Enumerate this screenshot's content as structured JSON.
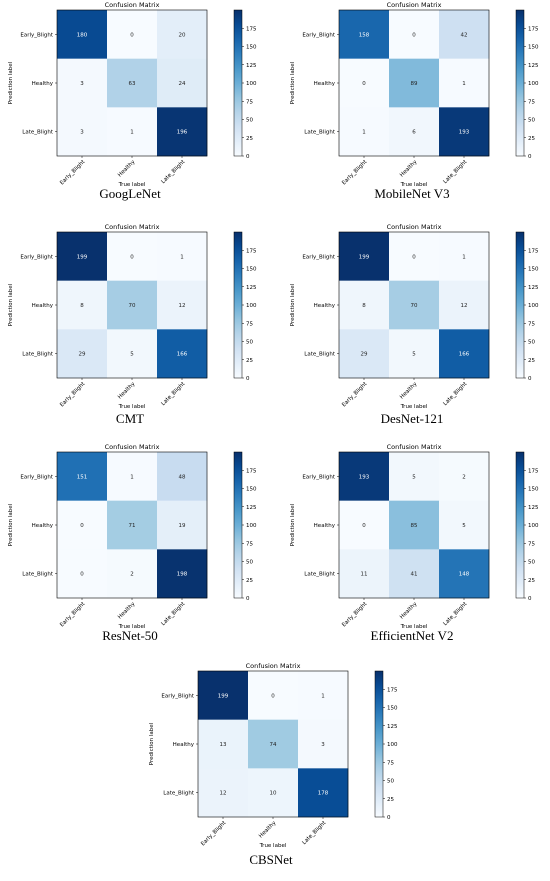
{
  "chart_data": [
    {
      "type": "heatmap",
      "title": "Confusion Matrix",
      "caption": "GoogLeNet",
      "xlabel": "True label",
      "ylabel": "Prediction label",
      "x_categories": [
        "Early_Blight",
        "Healthy",
        "Late_Blight"
      ],
      "y_categories": [
        "Early_Blight",
        "Healthy",
        "Late_Blight"
      ],
      "values": [
        [
          180,
          0,
          20
        ],
        [
          3,
          63,
          24
        ],
        [
          3,
          1,
          196
        ]
      ],
      "colorbar_ticks": [
        0,
        25,
        50,
        75,
        100,
        125,
        150,
        175
      ],
      "colormap": "Blues"
    },
    {
      "type": "heatmap",
      "title": "Confusion Matrix",
      "caption": "MobileNet V3",
      "xlabel": "True label",
      "ylabel": "Prediction label",
      "x_categories": [
        "Early_Blight",
        "Healthy",
        "Late_Blight"
      ],
      "y_categories": [
        "Early_Blight",
        "Healthy",
        "Late_Blight"
      ],
      "values": [
        [
          158,
          0,
          42
        ],
        [
          0,
          89,
          1
        ],
        [
          1,
          6,
          193
        ]
      ],
      "colorbar_ticks": [
        0,
        25,
        50,
        75,
        100,
        125,
        150,
        175
      ],
      "colormap": "Blues"
    },
    {
      "type": "heatmap",
      "title": "Confusion Matrix",
      "caption": "CMT",
      "xlabel": "True label",
      "ylabel": "Prediction label",
      "x_categories": [
        "Early_Blight",
        "Healthy",
        "Late_Blight"
      ],
      "y_categories": [
        "Early_Blight",
        "Healthy",
        "Late_Blight"
      ],
      "values": [
        [
          199,
          0,
          1
        ],
        [
          8,
          70,
          12
        ],
        [
          29,
          5,
          166
        ]
      ],
      "colorbar_ticks": [
        0,
        25,
        50,
        75,
        100,
        125,
        150,
        175
      ],
      "colormap": "Blues"
    },
    {
      "type": "heatmap",
      "title": "Confusion Matrix",
      "caption": "DesNet-121",
      "xlabel": "True label",
      "ylabel": "Prediction label",
      "x_categories": [
        "Early_Blight",
        "Healthy",
        "Late_Blight"
      ],
      "y_categories": [
        "Early_Blight",
        "Healthy",
        "Late_Blight"
      ],
      "values": [
        [
          199,
          0,
          1
        ],
        [
          8,
          70,
          12
        ],
        [
          29,
          5,
          166
        ]
      ],
      "colorbar_ticks": [
        0,
        25,
        50,
        75,
        100,
        125,
        150,
        175
      ],
      "colormap": "Blues"
    },
    {
      "type": "heatmap",
      "title": "Confusion Matrix",
      "caption": "ResNet-50",
      "xlabel": "True label",
      "ylabel": "Prediction label",
      "x_categories": [
        "Early_Blight",
        "Healthy",
        "Late_Blight"
      ],
      "y_categories": [
        "Early_Blight",
        "Healthy",
        "Late_Blight"
      ],
      "values": [
        [
          151,
          1,
          48
        ],
        [
          0,
          71,
          19
        ],
        [
          0,
          2,
          198
        ]
      ],
      "colorbar_ticks": [
        0,
        25,
        50,
        75,
        100,
        125,
        150,
        175
      ],
      "colormap": "Blues"
    },
    {
      "type": "heatmap",
      "title": "Confusion Matrix",
      "caption": "EfficientNet V2",
      "xlabel": "True label",
      "ylabel": "Prediction label",
      "x_categories": [
        "Early_Blight",
        "Healthy",
        "Late_Blight"
      ],
      "y_categories": [
        "Early_Blight",
        "Healthy",
        "Late_Blight"
      ],
      "values": [
        [
          193,
          5,
          2
        ],
        [
          0,
          85,
          5
        ],
        [
          11,
          41,
          148
        ]
      ],
      "colorbar_ticks": [
        0,
        25,
        50,
        75,
        100,
        125,
        150,
        175
      ],
      "colormap": "Blues"
    },
    {
      "type": "heatmap",
      "title": "Confusion Matrix",
      "caption": "CBSNet",
      "xlabel": "True label",
      "ylabel": "Prediction label",
      "x_categories": [
        "Early_Blight",
        "Healthy",
        "Late_Blight"
      ],
      "y_categories": [
        "Early_Blight",
        "Healthy",
        "Late_Blight"
      ],
      "values": [
        [
          199,
          0,
          1
        ],
        [
          13,
          74,
          3
        ],
        [
          12,
          10,
          178
        ]
      ],
      "colorbar_ticks": [
        0,
        25,
        50,
        75,
        100,
        125,
        150,
        175
      ],
      "colormap": "Blues"
    }
  ]
}
